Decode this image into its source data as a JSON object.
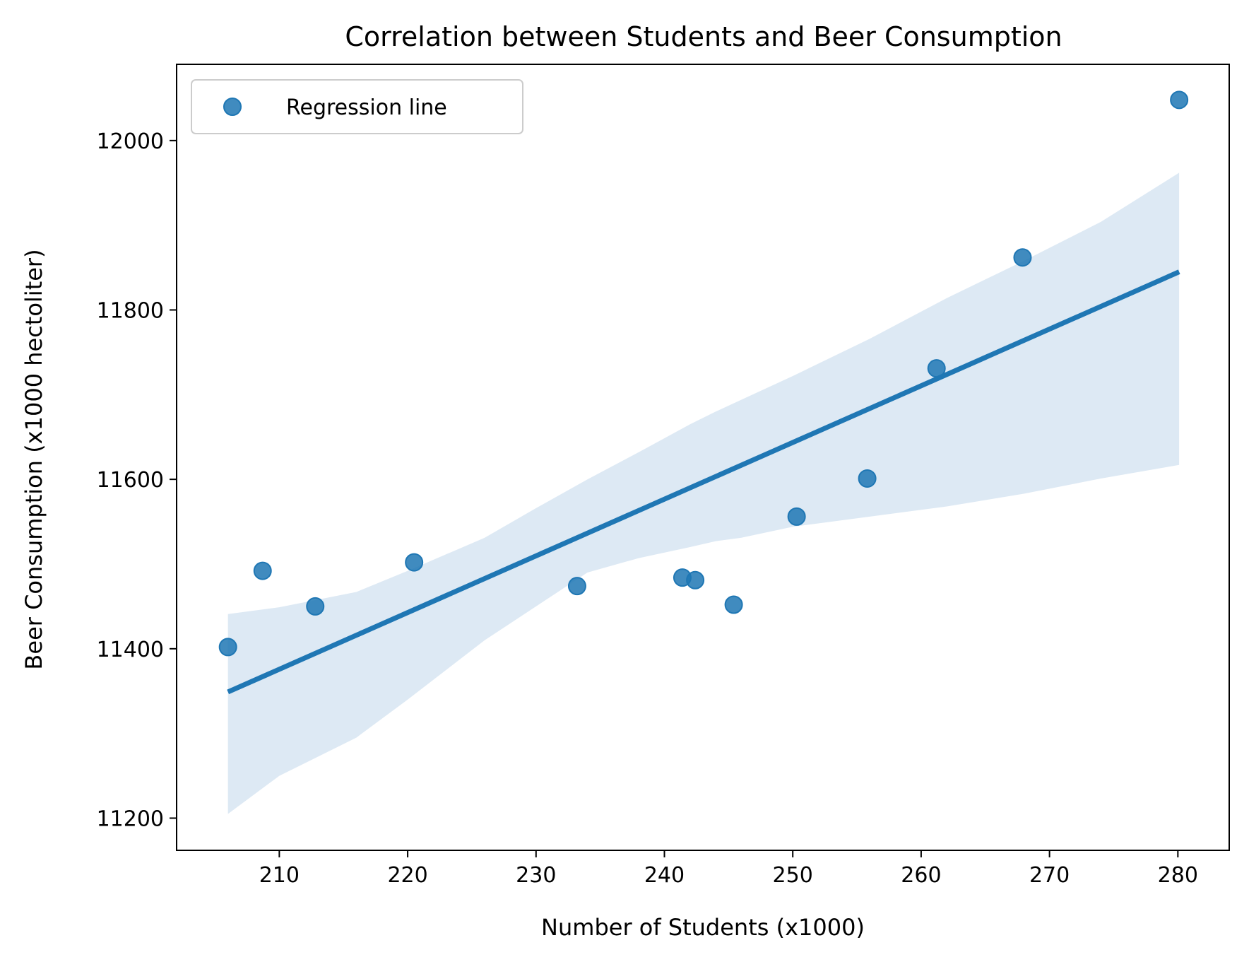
{
  "chart_data": {
    "type": "scatter",
    "title": "Correlation between Students and Beer Consumption",
    "xlabel": "Number of Students (x1000)",
    "ylabel": "Beer Consumption (x1000 hectoliter)",
    "xlim": [
      202,
      284
    ],
    "ylim": [
      11162,
      12090
    ],
    "xticks": [
      210,
      220,
      230,
      240,
      250,
      260,
      270,
      280
    ],
    "yticks": [
      11200,
      11400,
      11600,
      11800,
      12000
    ],
    "grid": false,
    "legend": {
      "placement": "top-left",
      "entries": [
        "Regression line"
      ]
    },
    "colors": {
      "points": "#1f77b4",
      "line": "#1f77b4",
      "band": "#dde9f4"
    },
    "series": [
      {
        "name": "Regression line",
        "x": [
          206.0,
          208.7,
          212.8,
          220.5,
          233.2,
          241.4,
          242.4,
          245.4,
          250.3,
          255.8,
          261.2,
          267.9,
          280.1
        ],
        "y": [
          11402,
          11492,
          11450,
          11502,
          11474,
          11484,
          11481,
          11452,
          11556,
          11601,
          11731,
          11862,
          12048
        ]
      }
    ],
    "regression": {
      "x": [
        206.0,
        280.1
      ],
      "y": [
        11349,
        11845
      ]
    },
    "confidence_band": {
      "x": [
        206.0,
        210,
        216,
        220,
        226,
        230,
        234,
        238,
        242,
        244,
        246,
        250,
        256,
        262,
        268,
        274,
        280.1
      ],
      "upper": [
        11441,
        11449,
        11467,
        11492,
        11531,
        11566,
        11600,
        11632,
        11665,
        11680,
        11694,
        11722,
        11766,
        11814,
        11858,
        11904,
        11962
      ],
      "lower": [
        11205,
        11250,
        11295,
        11340,
        11410,
        11450,
        11490,
        11507,
        11520,
        11527,
        11531,
        11544,
        11556,
        11568,
        11583,
        11601,
        11617
      ]
    }
  }
}
